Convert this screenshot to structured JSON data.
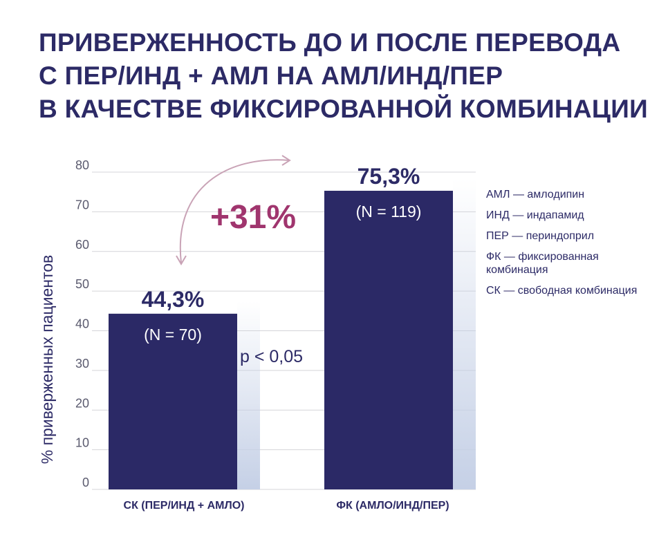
{
  "title_lines": [
    "ПРИВЕРЖЕННОСТЬ ДО И ПОСЛЕ ПЕРЕВОДА",
    "С ПЕР/ИНД + АМЛ НА АМЛ/ИНД/ПЕР",
    "В КАЧЕСТВЕ ФИКСИРОВАННОЙ КОМБИНАЦИИ"
  ],
  "legend_items": [
    "АМЛ — амлодипин",
    "ИНД — индапамид",
    "ПЕР — периндоприл",
    "ФК — фиксированная комбинация",
    "СК — свободная комбинация"
  ],
  "colors": {
    "bar": "#2b2966",
    "title": "#2c2a66",
    "accent": "#a0356e",
    "arrow": "#c9a3b6",
    "grid": "#d4d4d8",
    "axis_text": "#5a5a6e",
    "shadow": "#c5d0e6"
  },
  "chart_data": {
    "type": "bar",
    "categories": [
      "СК (ПЕР/ИНД + АМЛО)",
      "ФК (АМЛО/ИНД/ПЕР)"
    ],
    "values": [
      44.3,
      75.3
    ],
    "value_labels": [
      "44,3%",
      "75,3%"
    ],
    "n_labels": [
      "(N = 70)",
      "(N = 119)"
    ],
    "ylabel": "% приверженных пациентов",
    "ylim": [
      0,
      80
    ],
    "yticks": [
      0,
      10,
      20,
      30,
      40,
      50,
      60,
      70,
      80
    ],
    "grid": true,
    "annotations": {
      "increase": "+31%",
      "p_value": "p < 0,05"
    }
  }
}
